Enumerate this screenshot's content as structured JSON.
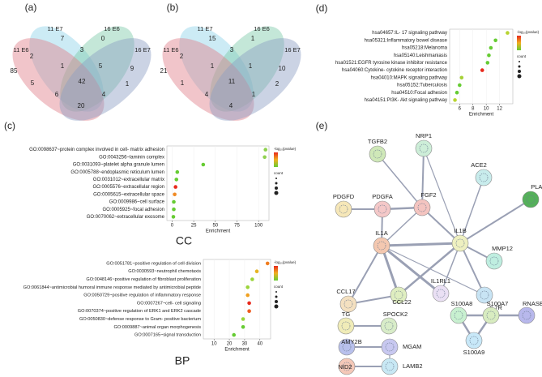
{
  "panels": [
    "(a)",
    "(b)",
    "(c)",
    "(d)",
    "(e)"
  ],
  "chart_data": [
    {
      "type": "venn",
      "sets": [
        "11 E7",
        "16 E6",
        "11 E6",
        "16 E7"
      ],
      "regions": [
        7,
        0,
        3,
        2,
        85,
        1,
        5,
        9,
        5,
        42,
        1,
        6,
        4,
        20
      ]
    },
    {
      "type": "venn",
      "sets": [
        "11 E7",
        "16 E6",
        "11 E6",
        "16 E7"
      ],
      "regions": [
        15,
        1,
        3,
        2,
        21,
        1,
        1,
        10,
        1,
        11,
        2,
        4,
        1,
        4
      ]
    },
    {
      "type": "dot",
      "title": "CC",
      "xlabel": "Enrichment",
      "legend_title": "-log₁₀(pvalue)",
      "size_legend_title": "count",
      "categories": [
        "GO:0098637~protein complex involved in cell- matrix adhesion",
        "GO:0043256~laminin complex",
        "GO:0031093~platelet alpha granule lumen",
        "GO:0005788~endoplasmic reticulum lumen",
        "GO:0031012~extracellular matrix",
        "GO:0005576~extracellular region",
        "GO:0005615~extracellular space",
        "GO:0009986~cell surface",
        "GO:0005925~focal adhesion",
        "GO:0070062~extracellular exosome"
      ],
      "values": [
        108,
        107,
        36,
        6,
        5,
        4,
        3,
        2,
        2,
        1.5
      ],
      "colors": [
        "#8fd14f",
        "#8fd14f",
        "#66cc33",
        "#66cc33",
        "#66cc33",
        "#e8291c",
        "#f08a24",
        "#66cc33",
        "#66cc33",
        "#66cc33"
      ],
      "xlim": [
        -6,
        112
      ],
      "xticks": [
        0,
        25,
        50,
        75,
        100
      ]
    },
    {
      "type": "dot",
      "title": "BP",
      "xlabel": "Enrichment",
      "legend_title": "-log₁₀(pvalue)",
      "size_legend_title": "count",
      "categories": [
        "GO:0051781~positive regulation of cell division",
        "GO:0030593~neutrophil chemotaxis",
        "GO:0048146~positive regulation of fibroblast proliferation",
        "GO:0061844~antimicrobial humoral immune response mediated by antimicrobial peptide",
        "GO:0050729~positive regulation of inflammatory response",
        "GO:0007267~cell- cell signaling",
        "GO:0070374~positive regulation of ERK1 and ERK2 cascade",
        "GO:0050830~defense response to Gram- positive bacterium",
        "GO:0009887~animal organ morphogenesis",
        "GO:0007165~signal transduction"
      ],
      "values": [
        45,
        38,
        35,
        32,
        32,
        33,
        33,
        29,
        29,
        23
      ],
      "colors": [
        "#f07d1f",
        "#e6b422",
        "#9bd43a",
        "#9bd43a",
        "#f0a020",
        "#e8291c",
        "#ef5a1e",
        "#9bd43a",
        "#66cc33",
        "#66cc33"
      ],
      "xlim": [
        3,
        47
      ],
      "xticks": [
        10,
        20,
        30,
        40
      ]
    },
    {
      "type": "dot",
      "xlabel": "Enrichment",
      "legend_title": "-log₁₀(pvalue)",
      "size_legend_title": "count",
      "categories": [
        "hsa04657:IL- 17 signaling pathway",
        "hsa05321:Inflammatory bowel disease",
        "hsa05218:Melanoma",
        "hsa05140:Leishmaniasis",
        "hsa01521:EGFR tyrosine kinase inhibitor resistance",
        "hsa04060:Cytokine- cytokine receptor interaction",
        "hsa04010:MAPK signaling pathway",
        "hsa05152:Tuberculosis",
        "hsa04510:Focal adhesion",
        "hsa04151:PI3K- Akt signaling pathway"
      ],
      "values": [
        13.2,
        11.4,
        10.7,
        10.4,
        10.2,
        9.4,
        6.3,
        6.0,
        5.6,
        5.3
      ],
      "colors": [
        "#b8d432",
        "#66cc33",
        "#66cc33",
        "#66cc33",
        "#66cc33",
        "#e8291c",
        "#a6d138",
        "#66cc33",
        "#66cc33",
        "#b8d432"
      ],
      "xlim": [
        4.5,
        14
      ],
      "xticks": [
        6,
        8,
        10,
        12
      ]
    }
  ],
  "network": {
    "nodes": [
      "TGFB2",
      "NRP1",
      "ACE2",
      "PDGFD",
      "PDGFA",
      "FGF2",
      "PLAU",
      "IL1A",
      "IL1B",
      "MMP12",
      "CCL17",
      "CCL22",
      "IL1RL1",
      "IL7R",
      "TG",
      "SPOCK2",
      "AMY2B",
      "MGAM",
      "NID2",
      "LAMB2",
      "S100A8",
      "S100A7",
      "RNASE7",
      "S100A9"
    ]
  }
}
